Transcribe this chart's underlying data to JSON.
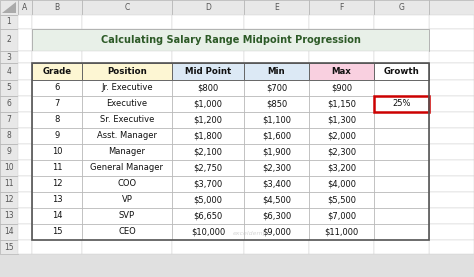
{
  "title": "Calculating Salary Range Midpoint Progression",
  "title_bg": "#e8f0e8",
  "fig_bg": "#e0e0e0",
  "col_headers": [
    "Grade",
    "Position",
    "Mid Point",
    "Min",
    "Max",
    "Growth"
  ],
  "col_header_bg": [
    "#fdf6d3",
    "#fdf6d3",
    "#dce9f5",
    "#dce9f5",
    "#f9d0e0",
    "#ffffff"
  ],
  "rows": [
    [
      "6",
      "Jr. Executive",
      "$800",
      "$700",
      "$900",
      ""
    ],
    [
      "7",
      "Executive",
      "$1,000",
      "$850",
      "$1,150",
      "25%"
    ],
    [
      "8",
      "Sr. Executive",
      "$1,200",
      "$1,100",
      "$1,300",
      ""
    ],
    [
      "9",
      "Asst. Manager",
      "$1,800",
      "$1,600",
      "$2,000",
      ""
    ],
    [
      "10",
      "Manager",
      "$2,100",
      "$1,900",
      "$2,300",
      ""
    ],
    [
      "11",
      "General Manager",
      "$2,750",
      "$2,300",
      "$3,200",
      ""
    ],
    [
      "12",
      "COO",
      "$3,700",
      "$3,400",
      "$4,000",
      ""
    ],
    [
      "13",
      "VP",
      "$5,000",
      "$4,500",
      "$5,500",
      ""
    ],
    [
      "14",
      "SVP",
      "$6,650",
      "$6,300",
      "$7,000",
      ""
    ],
    [
      "15",
      "CEO",
      "$10,000",
      "$9,000",
      "$11,000",
      ""
    ]
  ],
  "growth_cell_row": 1,
  "growth_cell_col": 5,
  "growth_border_color": "#cc0000",
  "excel_cols": [
    "A",
    "B",
    "C",
    "D",
    "E",
    "F",
    "G"
  ],
  "watermark": "exceldemy",
  "col_header_row_bg": "#dce9f5"
}
